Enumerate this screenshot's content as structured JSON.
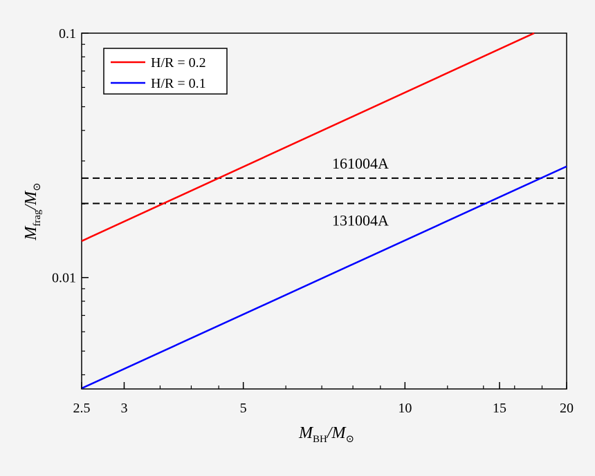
{
  "chart_data": {
    "type": "line",
    "x_scale": "log",
    "y_scale": "log",
    "xlim": [
      2.5,
      20
    ],
    "ylim": [
      0.0035,
      0.1
    ],
    "x_ticks": [
      {
        "value": 2.5,
        "label": "2.5"
      },
      {
        "value": 3,
        "label": "3"
      },
      {
        "value": 5,
        "label": "5"
      },
      {
        "value": 10,
        "label": "10"
      },
      {
        "value": 15,
        "label": "15"
      },
      {
        "value": 20,
        "label": "20"
      }
    ],
    "y_ticks": [
      {
        "value": 0.01,
        "label": "0.01"
      },
      {
        "value": 0.1,
        "label": "0.1"
      }
    ],
    "xlabel": {
      "main": "M",
      "sub": "BH",
      "suffix": "/M",
      "suffix_sub": "⊙"
    },
    "ylabel": {
      "main": "M",
      "sub": "frag",
      "suffix": "/M",
      "suffix_sub": "⊙"
    },
    "grid": false,
    "legend_position": "top-left",
    "series": [
      {
        "name": "H/R = 0.2",
        "color": "#ff0000",
        "x": [
          2.5,
          17.4
        ],
        "y": [
          0.0141,
          0.1
        ]
      },
      {
        "name": "H/R = 0.1",
        "color": "#0000ff",
        "x": [
          2.5,
          20
        ],
        "y": [
          0.00352,
          0.0285
        ]
      }
    ],
    "reference_lines": [
      {
        "label": "161004A",
        "y": 0.0255,
        "label_position": "above"
      },
      {
        "label": "131004A",
        "y": 0.0201,
        "label_position": "below"
      }
    ]
  }
}
